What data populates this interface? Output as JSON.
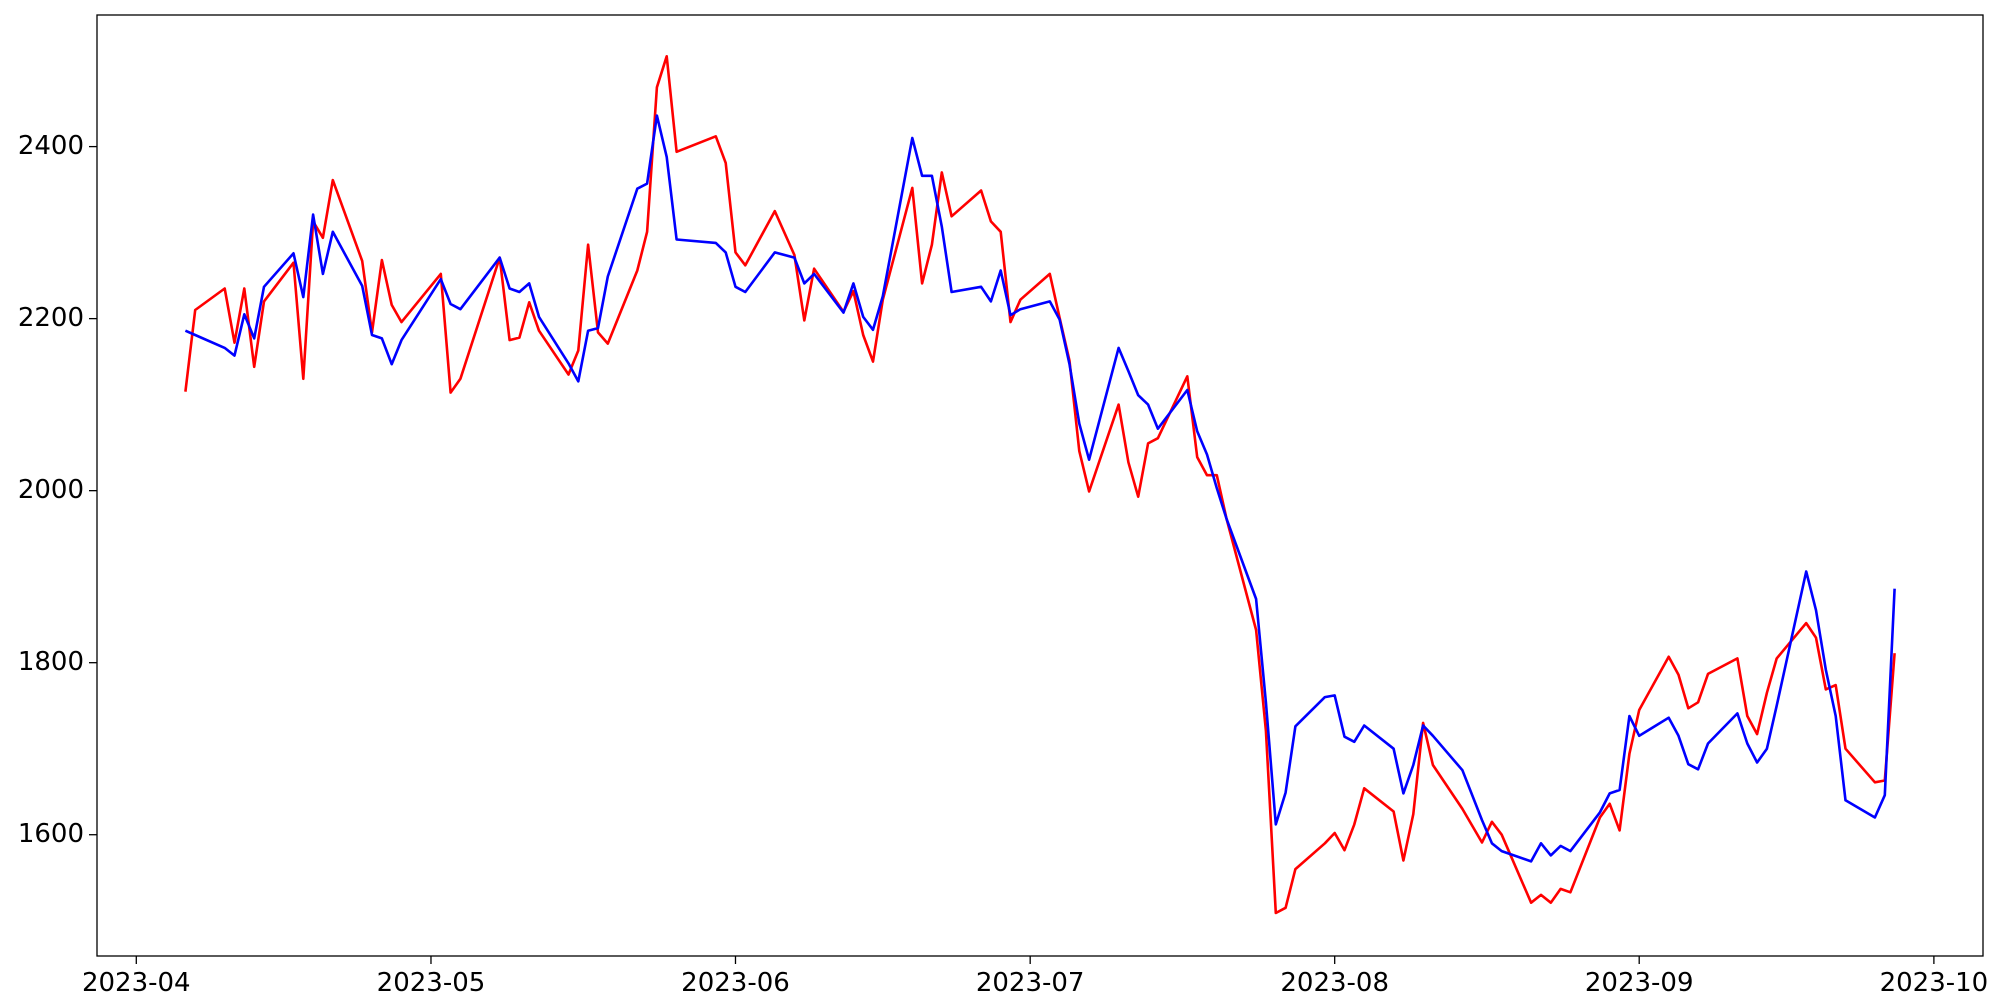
{
  "chart_data": {
    "type": "line",
    "x": [
      "2023-04-06",
      "2023-04-07",
      "2023-04-10",
      "2023-04-11",
      "2023-04-12",
      "2023-04-13",
      "2023-04-14",
      "2023-04-17",
      "2023-04-18",
      "2023-04-19",
      "2023-04-20",
      "2023-04-21",
      "2023-04-24",
      "2023-04-25",
      "2023-04-26",
      "2023-04-27",
      "2023-04-28",
      "2023-05-02",
      "2023-05-03",
      "2023-05-04",
      "2023-05-08",
      "2023-05-09",
      "2023-05-10",
      "2023-05-11",
      "2023-05-12",
      "2023-05-15",
      "2023-05-16",
      "2023-05-17",
      "2023-05-18",
      "2023-05-19",
      "2023-05-22",
      "2023-05-23",
      "2023-05-24",
      "2023-05-25",
      "2023-05-26",
      "2023-05-30",
      "2023-05-31",
      "2023-06-01",
      "2023-06-02",
      "2023-06-05",
      "2023-06-07",
      "2023-06-08",
      "2023-06-09",
      "2023-06-12",
      "2023-06-13",
      "2023-06-14",
      "2023-06-15",
      "2023-06-16",
      "2023-06-19",
      "2023-06-20",
      "2023-06-21",
      "2023-06-22",
      "2023-06-23",
      "2023-06-26",
      "2023-06-27",
      "2023-06-28",
      "2023-06-29",
      "2023-06-30",
      "2023-07-03",
      "2023-07-04",
      "2023-07-05",
      "2023-07-06",
      "2023-07-07",
      "2023-07-10",
      "2023-07-11",
      "2023-07-12",
      "2023-07-13",
      "2023-07-14",
      "2023-07-17",
      "2023-07-18",
      "2023-07-19",
      "2023-07-20",
      "2023-07-21",
      "2023-07-24",
      "2023-07-25",
      "2023-07-26",
      "2023-07-27",
      "2023-07-28",
      "2023-07-31",
      "2023-08-01",
      "2023-08-02",
      "2023-08-03",
      "2023-08-04",
      "2023-08-07",
      "2023-08-08",
      "2023-08-09",
      "2023-08-10",
      "2023-08-11",
      "2023-08-14",
      "2023-08-16",
      "2023-08-17",
      "2023-08-18",
      "2023-08-21",
      "2023-08-22",
      "2023-08-23",
      "2023-08-24",
      "2023-08-25",
      "2023-08-28",
      "2023-08-29",
      "2023-08-30",
      "2023-08-31",
      "2023-09-01",
      "2023-09-04",
      "2023-09-05",
      "2023-09-06",
      "2023-09-07",
      "2023-09-08",
      "2023-09-11",
      "2023-09-12",
      "2023-09-13",
      "2023-09-14",
      "2023-09-15",
      "2023-09-18",
      "2023-09-19",
      "2023-09-20",
      "2023-09-21",
      "2023-09-22",
      "2023-09-25",
      "2023-09-26",
      "2023-09-27"
    ],
    "series": [
      {
        "color": "#ff0000",
        "values": [
          2115,
          2210,
          2235,
          2172,
          2235,
          2144,
          2220,
          2265,
          2130,
          2313,
          2294,
          2361,
          2267,
          2184,
          2268,
          2216,
          2196,
          2252,
          2114,
          2130,
          2271,
          2175,
          2178,
          2219,
          2186,
          2135,
          2163,
          2286,
          2184,
          2171,
          2256,
          2301,
          2469,
          2505,
          2394,
          2412,
          2381,
          2277,
          2262,
          2325,
          2274,
          2198,
          2258,
          2208,
          2232,
          2181,
          2150,
          2222,
          2352,
          2241,
          2286,
          2370,
          2319,
          2349,
          2313,
          2301,
          2196,
          2222,
          2252,
          2201,
          2151,
          2046,
          1999,
          2100,
          2033,
          1993,
          2055,
          2061,
          2133,
          2039,
          2018,
          2018,
          1967,
          1838,
          1721,
          1509,
          1515,
          1560,
          1590,
          1602,
          1582,
          1612,
          1654,
          1627,
          1570,
          1624,
          1730,
          1681,
          1630,
          1591,
          1615,
          1600,
          1521,
          1530,
          1521,
          1537,
          1533,
          1620,
          1636,
          1605,
          1694,
          1745,
          1807,
          1786,
          1747,
          1754,
          1787,
          1805,
          1738,
          1717,
          1765,
          1805,
          1846,
          1829,
          1769,
          1774,
          1700,
          1661,
          1663,
          1811
        ]
      },
      {
        "color": "#0000ff",
        "values": [
          2186,
          2181,
          2166,
          2157,
          2205,
          2177,
          2237,
          2276,
          2225,
          2321,
          2252,
          2301,
          2238,
          2181,
          2177,
          2147,
          2175,
          2246,
          2217,
          2211,
          2271,
          2235,
          2231,
          2241,
          2202,
          2148,
          2127,
          2186,
          2189,
          2249,
          2351,
          2357,
          2436,
          2388,
          2292,
          2288,
          2277,
          2237,
          2231,
          2277,
          2271,
          2241,
          2252,
          2207,
          2241,
          2202,
          2187,
          2226,
          2410,
          2366,
          2366,
          2307,
          2231,
          2237,
          2220,
          2256,
          2204,
          2211,
          2220,
          2199,
          2147,
          2078,
          2036,
          2166,
          2139,
          2111,
          2100,
          2072,
          2117,
          2069,
          2042,
          2003,
          1967,
          1874,
          1754,
          1612,
          1649,
          1726,
          1760,
          1762,
          1714,
          1708,
          1727,
          1700,
          1648,
          1681,
          1727,
          1715,
          1675,
          1617,
          1590,
          1581,
          1569,
          1590,
          1576,
          1587,
          1581,
          1626,
          1648,
          1652,
          1738,
          1715,
          1736,
          1715,
          1682,
          1676,
          1706,
          1741,
          1706,
          1684,
          1700,
          1750,
          1906,
          1861,
          1792,
          1738,
          1640,
          1620,
          1646,
          1886
        ]
      }
    ],
    "xlim": [
      "2023-03-28",
      "2023-10-06"
    ],
    "xticks": [
      "2023-04",
      "2023-05",
      "2023-06",
      "2023-07",
      "2023-08",
      "2023-09",
      "2023-10"
    ],
    "ylim": [
      1459,
      2553
    ],
    "yticks": [
      1600,
      1800,
      2000,
      2200,
      2400
    ]
  }
}
